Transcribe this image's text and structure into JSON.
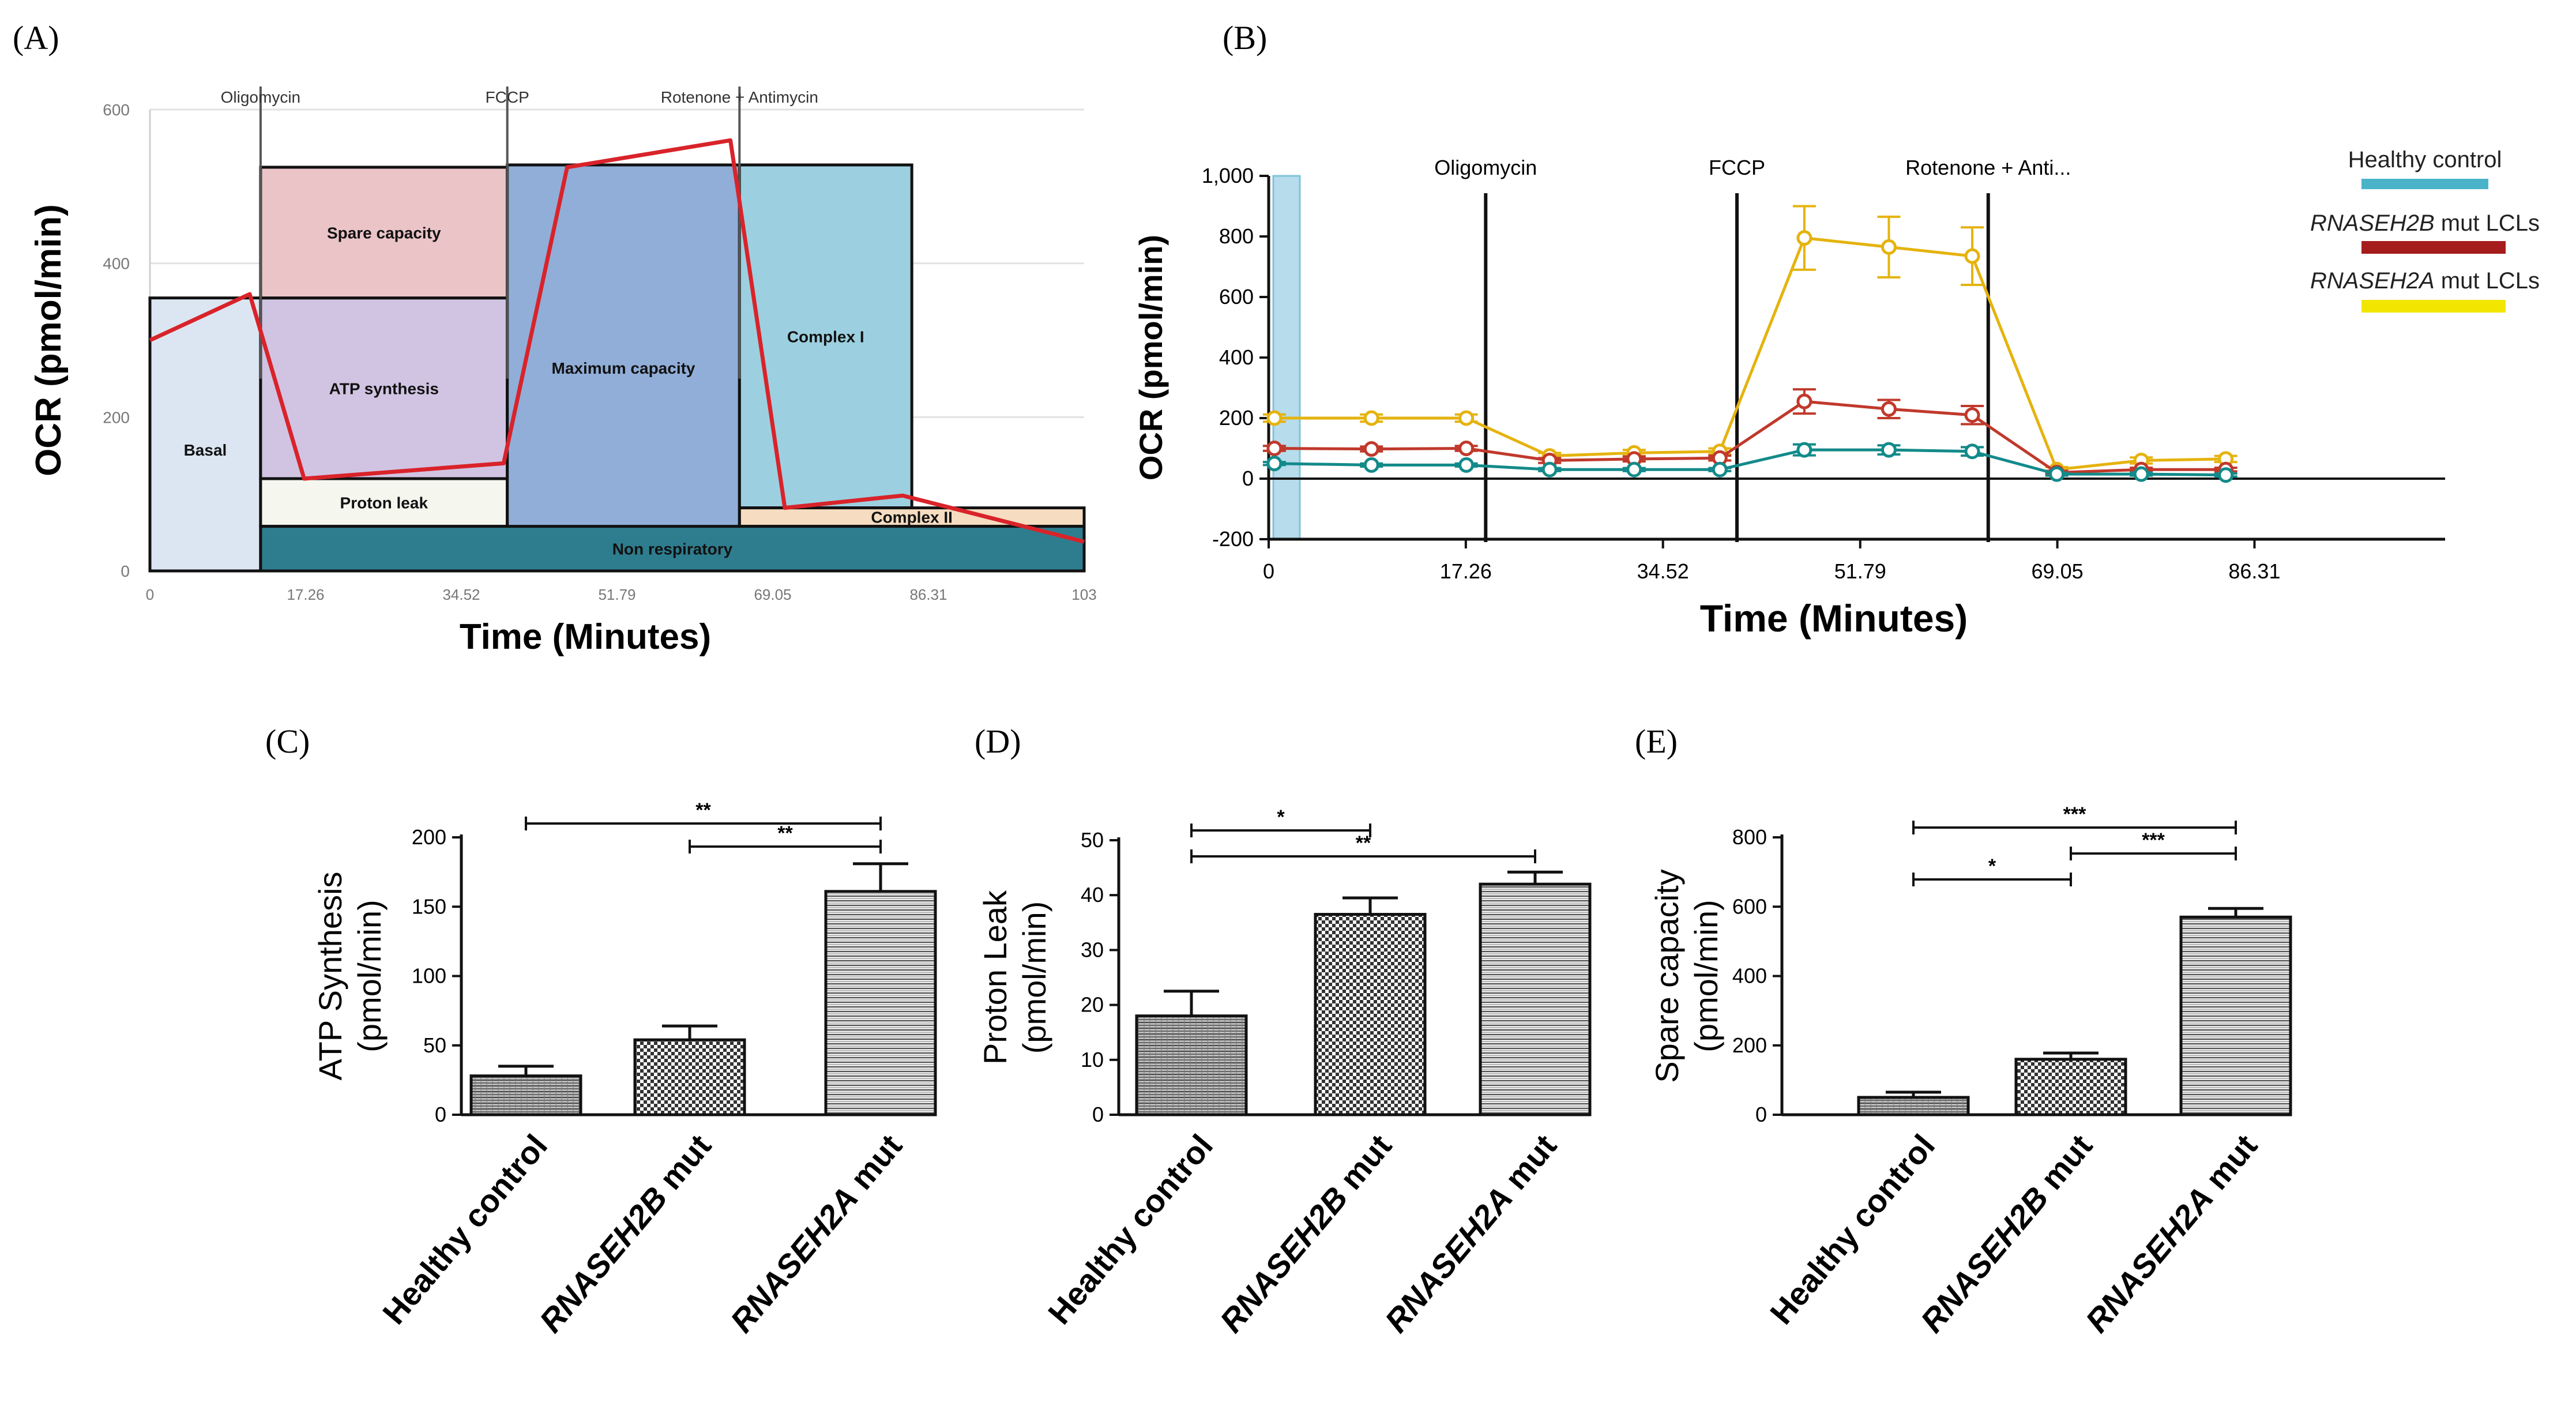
{
  "chart_data": [
    {
      "id": "A",
      "panel_label": "(A)",
      "type": "line",
      "title": "",
      "xlabel": "Time  (Minutes)",
      "ylabel": "OCR (pmol/min)",
      "xlim": [
        0,
        103
      ],
      "ylim": [
        0,
        600
      ],
      "x_ticks": [
        "0",
        "17.26",
        "34.52",
        "51.79",
        "69.05",
        "86.31",
        "103"
      ],
      "y_ticks": [
        "0",
        "200",
        "400",
        "600"
      ],
      "injections": [
        {
          "label": "Oligomycin",
          "x": 12.2
        },
        {
          "label": "FCCP",
          "x": 39.4
        },
        {
          "label": "Rotenone + Antimycin",
          "x": 65.0
        }
      ],
      "regions": [
        {
          "label": "Basal",
          "x0": 0,
          "x1": 12.2,
          "y0": 0,
          "y1": 355,
          "color": "#dce6f2"
        },
        {
          "label": "ATP synthesis",
          "x0": 12.2,
          "x1": 39.4,
          "y0": 120,
          "y1": 355,
          "color": "#d1c4e2"
        },
        {
          "label": "Spare capacity",
          "x0": 12.2,
          "x1": 39.4,
          "y0": 355,
          "y1": 525,
          "color": "#ebc4c8"
        },
        {
          "label": "Proton leak",
          "x0": 12.2,
          "x1": 39.4,
          "y0": 58,
          "y1": 120,
          "color": "#f5f6ee"
        },
        {
          "label": "Maximum capacity",
          "x0": 39.4,
          "x1": 65.0,
          "y0": 0,
          "y1": 528,
          "color": "#90aed8"
        },
        {
          "label": "Complex I",
          "x0": 65.0,
          "x1": 84.0,
          "y0": 82,
          "y1": 528,
          "color": "#9cd0e0"
        },
        {
          "label": "Complex II",
          "x0": 65.0,
          "x1": 103.0,
          "y0": 58,
          "y1": 82,
          "color": "#f6dcc0"
        },
        {
          "label": "Non respiratory",
          "x0": 12.2,
          "x1": 103.0,
          "y0": 0,
          "y1": 58,
          "color": "#2e7d8e"
        }
      ],
      "series": [
        {
          "name": "OCR",
          "color": "#d9232a",
          "x": [
            0,
            11,
            17,
            39,
            46,
            64,
            70,
            83,
            103
          ],
          "y": [
            300,
            360,
            120,
            140,
            525,
            560,
            82,
            98,
            38
          ]
        }
      ]
    },
    {
      "id": "B",
      "panel_label": "(B)",
      "type": "line",
      "xlabel": "Time  (Minutes)",
      "ylabel": "OCR (pmol/min)",
      "xlim": [
        0,
        103
      ],
      "ylim": [
        -200,
        1000
      ],
      "x_ticks": [
        "0",
        "17.26",
        "34.52",
        "51.79",
        "69.05",
        "86.31"
      ],
      "x_tick_values": [
        0,
        17.26,
        34.52,
        51.79,
        69.05,
        86.31
      ],
      "y_ticks": [
        "-200",
        "0",
        "200",
        "400",
        "600",
        "800",
        "1,000"
      ],
      "y_tick_values": [
        -200,
        0,
        200,
        400,
        600,
        800,
        1000
      ],
      "injections": [
        {
          "label": "Oligomycin",
          "x": 19.0
        },
        {
          "label": "FCCP",
          "x": 41.0
        },
        {
          "label": "Rotenone + Anti...",
          "x": 63.0
        }
      ],
      "legend": {
        "title": "Healthy control",
        "items": [
          {
            "name": "Healthy control",
            "color": "#4bb3c9"
          },
          {
            "name": "RNASEH2B mut LCLs",
            "italic": "RNASEH2B",
            "rest": " mut LCLs",
            "color": "#a51c1c"
          },
          {
            "name": "RNASEH2A mut LCLs",
            "italic": "RNASEH2A",
            "rest": " mut LCLs",
            "color": "#f2e600"
          }
        ]
      },
      "x": [
        0.5,
        9.0,
        17.3,
        24.6,
        32.0,
        39.5,
        46.9,
        54.3,
        61.6,
        69.0,
        76.4,
        83.8
      ],
      "series": [
        {
          "name": "RNASEH2A mut",
          "color": "#e5b30e",
          "values": [
            200,
            200,
            200,
            75,
            85,
            90,
            795,
            765,
            735,
            30,
            60,
            65
          ],
          "errors": [
            12,
            12,
            12,
            10,
            10,
            10,
            105,
            100,
            95,
            8,
            10,
            10
          ]
        },
        {
          "name": "RNASEH2B mut",
          "color": "#c0392b",
          "values": [
            100,
            98,
            100,
            60,
            65,
            68,
            255,
            230,
            210,
            20,
            30,
            30
          ],
          "errors": [
            8,
            8,
            8,
            8,
            8,
            8,
            40,
            30,
            30,
            6,
            6,
            6
          ]
        },
        {
          "name": "Healthy control",
          "color": "#138a8a",
          "values": [
            50,
            45,
            45,
            30,
            30,
            30,
            95,
            95,
            90,
            15,
            15,
            12
          ],
          "errors": [
            5,
            5,
            5,
            5,
            5,
            5,
            18,
            15,
            14,
            5,
            5,
            5
          ]
        }
      ]
    },
    {
      "id": "C",
      "panel_label": "(C)",
      "type": "bar",
      "ylabel_line1": "ATP  Synthesis",
      "ylabel_line2": "(pmol/min)",
      "ylim": [
        0,
        200
      ],
      "y_ticks": [
        "0",
        "50",
        "100",
        "150",
        "200"
      ],
      "y_tick_values": [
        0,
        50,
        100,
        150,
        200
      ],
      "categories": [
        "Healthy control",
        "RNASEH2B mut",
        "RNASEH2A mut"
      ],
      "values": [
        28,
        54,
        161
      ],
      "errors": [
        7,
        10,
        20
      ],
      "significance": [
        {
          "from": 0,
          "to": 2,
          "label": "**"
        },
        {
          "from": 1,
          "to": 2,
          "label": "**"
        }
      ]
    },
    {
      "id": "D",
      "panel_label": "(D)",
      "type": "bar",
      "ylabel_line1": "Proton Leak",
      "ylabel_line2": "(pmol/min)",
      "ylim": [
        0,
        50
      ],
      "y_ticks": [
        "0",
        "10",
        "20",
        "30",
        "40",
        "50"
      ],
      "y_tick_values": [
        0,
        10,
        20,
        30,
        40,
        50
      ],
      "categories": [
        "Healthy control",
        "RNASEH2B mut",
        "RNASEH2A mut"
      ],
      "values": [
        18,
        36.5,
        42
      ],
      "errors": [
        4.5,
        3,
        2.2
      ],
      "significance": [
        {
          "from": 0,
          "to": 1,
          "label": "*"
        },
        {
          "from": 0,
          "to": 2,
          "label": "**"
        }
      ]
    },
    {
      "id": "E",
      "panel_label": "(E)",
      "type": "bar",
      "ylabel_line1": "Spare capacity",
      "ylabel_line2": "(pmol/min)",
      "ylim": [
        0,
        800
      ],
      "y_ticks": [
        "0",
        "200",
        "400",
        "600",
        "800"
      ],
      "y_tick_values": [
        0,
        200,
        400,
        600,
        800
      ],
      "categories": [
        "Healthy control",
        "RNASEH2B mut",
        "RNASEH2A mut"
      ],
      "values": [
        50,
        160,
        570
      ],
      "errors": [
        15,
        18,
        25
      ],
      "significance": [
        {
          "from": 0,
          "to": 2,
          "label": "***"
        },
        {
          "from": 0,
          "to": 1,
          "label": "*"
        },
        {
          "from": 1,
          "to": 2,
          "label": "***"
        }
      ]
    }
  ]
}
